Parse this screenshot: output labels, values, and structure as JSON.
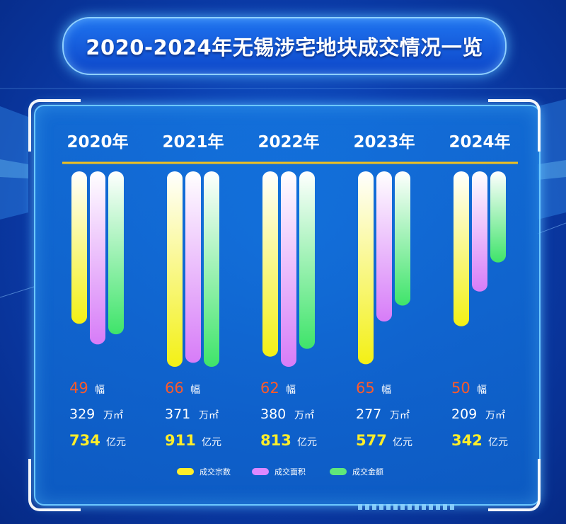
{
  "title": "2020-2024年无锡涉宅地块成交情况一览",
  "colors": {
    "count": "#ffee2a",
    "area": "#dd88ff",
    "money": "#5fe87a",
    "count_text": "#ff5a2a",
    "money_text": "#ffee2a",
    "divider": "#f0c020"
  },
  "units": {
    "count": "幅",
    "area": "万㎡",
    "money": "亿元"
  },
  "chart_data": {
    "type": "bar",
    "title": "2020-2024年无锡涉宅地块成交情况一览",
    "categories": [
      "2020年",
      "2021年",
      "2022年",
      "2023年",
      "2024年"
    ],
    "series": [
      {
        "name": "成交宗数",
        "unit": "幅",
        "values": [
          49,
          66,
          62,
          65,
          50
        ]
      },
      {
        "name": "成交面积",
        "unit": "万㎡",
        "values": [
          329,
          371,
          380,
          277,
          209
        ]
      },
      {
        "name": "成交金额",
        "unit": "亿元",
        "values": [
          734,
          911,
          813,
          577,
          342
        ]
      }
    ],
    "legend_position": "bottom-center",
    "grid": false
  }
}
